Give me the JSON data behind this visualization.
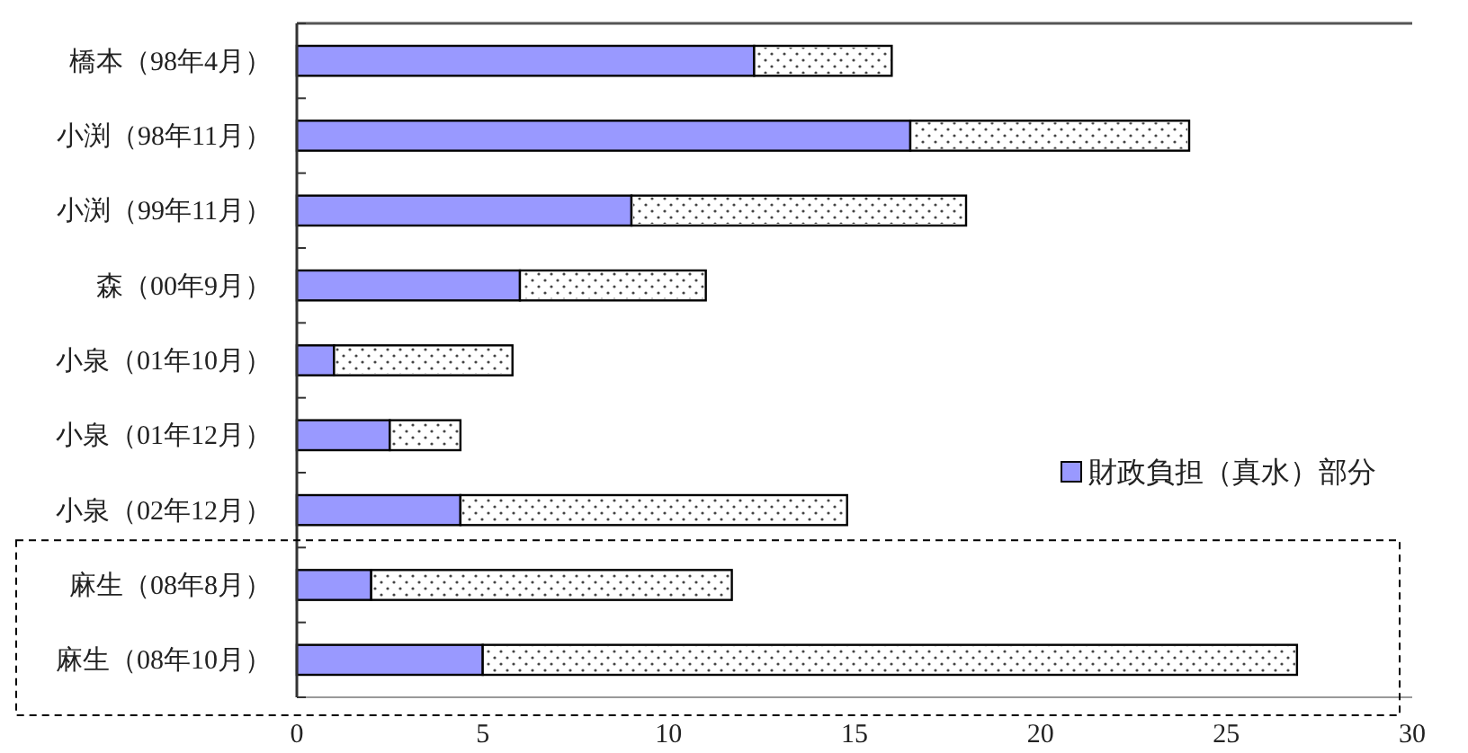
{
  "chart_data": {
    "type": "bar",
    "orientation": "horizontal",
    "stacked": true,
    "categories": [
      "橋本（98年4月）",
      "小渕（98年11月）",
      "小渕（99年11月）",
      "森（00年9月）",
      "小泉（01年10月）",
      "小泉（01年12月）",
      "小泉（02年12月）",
      "麻生（08年8月）",
      "麻生（08年10月）"
    ],
    "series": [
      {
        "name": "財政負担（真水）部分",
        "color": "#9999ff",
        "values": [
          12.3,
          16.5,
          9.0,
          6.0,
          1.0,
          2.5,
          4.4,
          2.0,
          5.0
        ]
      },
      {
        "color": "#ffffff",
        "values": [
          3.7,
          7.5,
          9.0,
          5.0,
          4.8,
          1.9,
          10.4,
          9.7,
          21.9
        ]
      }
    ],
    "xlim": [
      0,
      30
    ],
    "xticks": [
      0,
      5,
      10,
      15,
      20,
      25,
      30
    ],
    "legend": "right",
    "grid": false
  }
}
